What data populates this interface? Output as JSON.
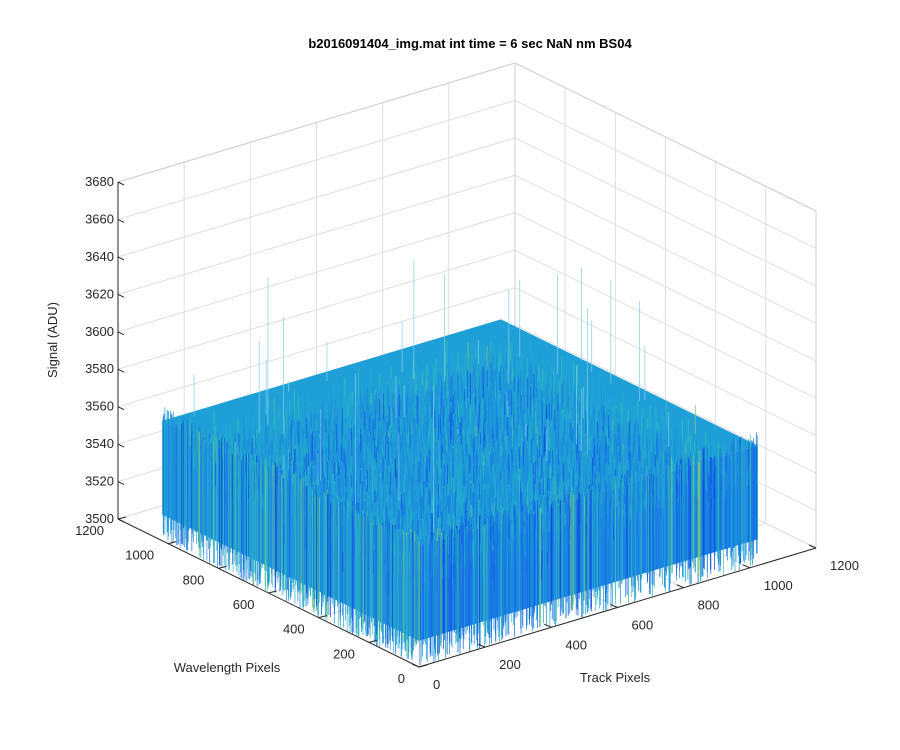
{
  "chart_data": {
    "type": "surface",
    "title": "b2016091404_img.mat int time = 6 sec  NaN nm BS04",
    "xlabel": "Track Pixels",
    "ylabel": "Wavelength Pixels",
    "zlabel": "Signal (ADU)",
    "xlim": [
      0,
      1200
    ],
    "ylim": [
      0,
      1200
    ],
    "zlim": [
      3500,
      3680
    ],
    "xticks": [
      "0",
      "200",
      "400",
      "600",
      "800",
      "1000",
      "1200"
    ],
    "yticks": [
      "0",
      "200",
      "400",
      "600",
      "800",
      "1000",
      "1200"
    ],
    "zticks": [
      "3500",
      "3520",
      "3540",
      "3560",
      "3580",
      "3600",
      "3620",
      "3640",
      "3660",
      "3680"
    ],
    "grid": true,
    "surface": {
      "x_range": [
        0,
        1024
      ],
      "y_range": [
        0,
        1024
      ],
      "mean_value": 3540,
      "typical_range": [
        3520,
        3560
      ],
      "spike_max": 3650,
      "colormap": [
        "#0a3dd6",
        "#1460e8",
        "#1b8cdc",
        "#22a8d0",
        "#3cbfb2",
        "#80c873"
      ]
    }
  }
}
